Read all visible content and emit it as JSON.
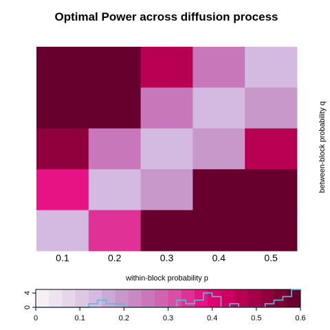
{
  "chart_data": {
    "type": "heatmap",
    "title": "Optimal Power across diffusion process",
    "xlabel": "within-block probability p",
    "ylabel": "between-block probability q",
    "x_ticks": [
      "0.1",
      "0.2",
      "0.3",
      "0.4",
      "0.5"
    ],
    "y_ticks": [],
    "rows_top_to_bottom": [
      [
        0.59,
        0.59,
        0.47,
        0.24,
        0.12
      ],
      [
        0.57,
        0.57,
        0.24,
        0.12,
        0.18
      ],
      [
        0.53,
        0.24,
        0.12,
        0.2,
        0.47
      ],
      [
        0.38,
        0.12,
        0.18,
        0.57,
        0.59
      ],
      [
        0.12,
        0.33,
        0.57,
        0.59,
        0.59
      ]
    ],
    "key": {
      "range": [
        0,
        0.6
      ],
      "ticks": [
        "0",
        "0.1",
        "0.2",
        "0.3",
        "0.4",
        "0.5",
        "0.6"
      ],
      "count_ticks": [
        "0",
        "4"
      ],
      "colors": [
        "#F5EFF6",
        "#EEE4F0",
        "#E6D6EA",
        "#DDC7E2",
        "#D4BAE0",
        "#CCA8D6",
        "#C898CB",
        "#C888C2",
        "#C977BB",
        "#D064B2",
        "#D94FA5",
        "#E03296",
        "#E71283",
        "#DE0070",
        "#CB0060",
        "#B80052",
        "#A30047",
        "#8F003D",
        "#7B0034",
        "#67002C"
      ],
      "histogram_counts": [
        0,
        0,
        0,
        0,
        0,
        0,
        1,
        2,
        1,
        1,
        0,
        0,
        0,
        0,
        0,
        0,
        2,
        1,
        2,
        4,
        3,
        0,
        1,
        0,
        0,
        0,
        1,
        2,
        3,
        5
      ]
    }
  }
}
